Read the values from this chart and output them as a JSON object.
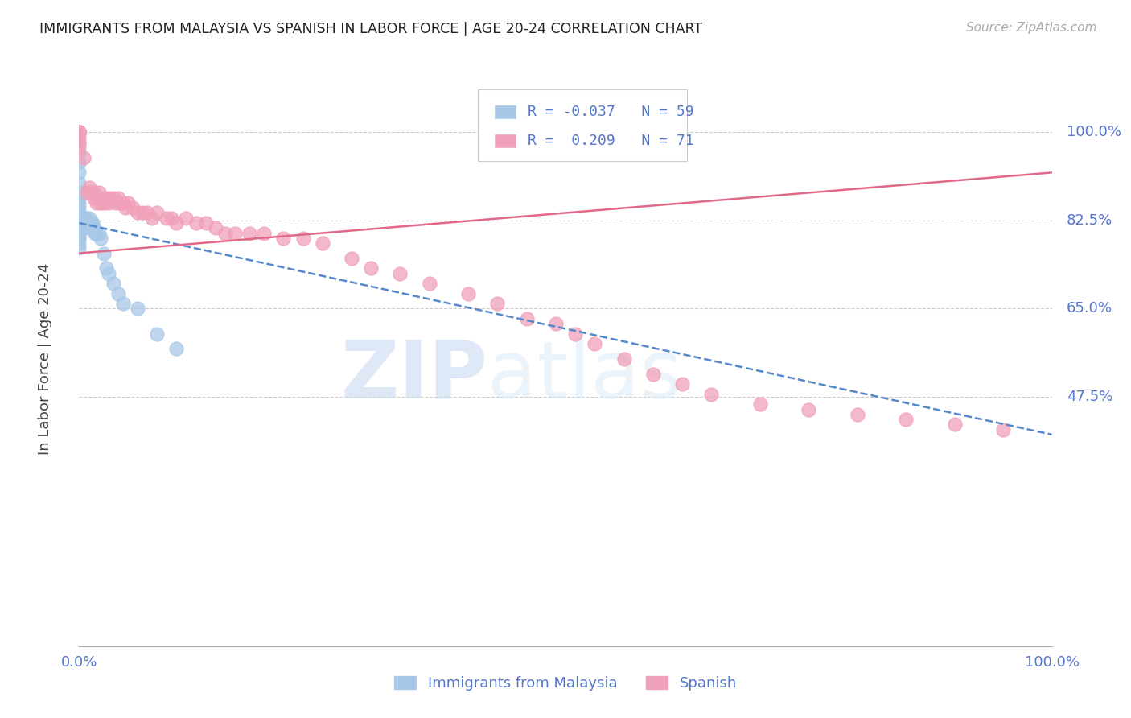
{
  "title": "IMMIGRANTS FROM MALAYSIA VS SPANISH IN LABOR FORCE | AGE 20-24 CORRELATION CHART",
  "source": "Source: ZipAtlas.com",
  "ylabel": "In Labor Force | Age 20-24",
  "ytick_labels": [
    "100.0%",
    "82.5%",
    "65.0%",
    "47.5%"
  ],
  "ytick_values": [
    1.0,
    0.825,
    0.65,
    0.475
  ],
  "xlim": [
    0.0,
    1.0
  ],
  "ylim": [
    -0.02,
    1.12
  ],
  "legend_r_malaysia": "-0.037",
  "legend_n_malaysia": "59",
  "legend_r_spanish": "0.209",
  "legend_n_spanish": "71",
  "watermark_zip": "ZIP",
  "watermark_atlas": "atlas",
  "color_malaysia": "#a8c8e8",
  "color_spanish": "#f0a0b8",
  "color_malaysia_line": "#5588cc",
  "color_spanish_line": "#e06888",
  "color_axis_labels": "#5577cc",
  "malaysia_x": [
    0.0,
    0.0,
    0.0,
    0.0,
    0.0,
    0.0,
    0.0,
    0.0,
    0.0,
    0.0,
    0.0,
    0.0,
    0.0,
    0.0,
    0.0,
    0.0,
    0.0,
    0.0,
    0.0,
    0.0,
    0.0,
    0.0,
    0.0,
    0.0,
    0.0,
    0.0,
    0.0,
    0.0,
    0.0,
    0.0,
    0.004,
    0.004,
    0.004,
    0.005,
    0.006,
    0.006,
    0.007,
    0.007,
    0.008,
    0.009,
    0.01,
    0.011,
    0.012,
    0.013,
    0.014,
    0.015,
    0.016,
    0.018,
    0.02,
    0.022,
    0.025,
    0.028,
    0.03,
    0.035,
    0.04,
    0.045,
    0.06,
    0.08,
    0.1
  ],
  "malaysia_y": [
    1.0,
    1.0,
    0.98,
    0.96,
    0.94,
    0.92,
    0.9,
    0.88,
    0.87,
    0.86,
    0.85,
    0.84,
    0.84,
    0.83,
    0.83,
    0.83,
    0.82,
    0.82,
    0.82,
    0.82,
    0.81,
    0.81,
    0.81,
    0.8,
    0.8,
    0.8,
    0.79,
    0.79,
    0.78,
    0.77,
    0.83,
    0.82,
    0.81,
    0.83,
    0.82,
    0.81,
    0.83,
    0.82,
    0.82,
    0.82,
    0.83,
    0.82,
    0.82,
    0.82,
    0.82,
    0.81,
    0.8,
    0.8,
    0.8,
    0.79,
    0.76,
    0.73,
    0.72,
    0.7,
    0.68,
    0.66,
    0.65,
    0.6,
    0.57
  ],
  "spanish_x": [
    0.0,
    0.0,
    0.0,
    0.0,
    0.0,
    0.0,
    0.0,
    0.0,
    0.0,
    0.0,
    0.0,
    0.005,
    0.008,
    0.01,
    0.012,
    0.015,
    0.015,
    0.018,
    0.02,
    0.022,
    0.025,
    0.025,
    0.03,
    0.03,
    0.035,
    0.038,
    0.04,
    0.042,
    0.045,
    0.048,
    0.05,
    0.055,
    0.06,
    0.065,
    0.07,
    0.075,
    0.08,
    0.09,
    0.095,
    0.1,
    0.11,
    0.12,
    0.13,
    0.14,
    0.15,
    0.16,
    0.175,
    0.19,
    0.21,
    0.23,
    0.25,
    0.28,
    0.3,
    0.33,
    0.36,
    0.4,
    0.43,
    0.46,
    0.49,
    0.51,
    0.53,
    0.56,
    0.59,
    0.62,
    0.65,
    0.7,
    0.75,
    0.8,
    0.85,
    0.9,
    0.95
  ],
  "spanish_y": [
    1.0,
    1.0,
    1.0,
    1.0,
    1.0,
    1.0,
    1.0,
    1.0,
    0.99,
    0.98,
    0.97,
    0.95,
    0.88,
    0.89,
    0.88,
    0.88,
    0.87,
    0.86,
    0.88,
    0.86,
    0.87,
    0.86,
    0.87,
    0.86,
    0.87,
    0.86,
    0.87,
    0.86,
    0.86,
    0.85,
    0.86,
    0.85,
    0.84,
    0.84,
    0.84,
    0.83,
    0.84,
    0.83,
    0.83,
    0.82,
    0.83,
    0.82,
    0.82,
    0.81,
    0.8,
    0.8,
    0.8,
    0.8,
    0.79,
    0.79,
    0.78,
    0.75,
    0.73,
    0.72,
    0.7,
    0.68,
    0.66,
    0.63,
    0.62,
    0.6,
    0.58,
    0.55,
    0.52,
    0.5,
    0.48,
    0.46,
    0.45,
    0.44,
    0.43,
    0.42,
    0.41
  ],
  "trend_malaysia_x0": 0.0,
  "trend_malaysia_x1": 1.0,
  "trend_malaysia_y0": 0.82,
  "trend_malaysia_y1": 0.4,
  "trend_spanish_x0": 0.0,
  "trend_spanish_x1": 1.0,
  "trend_spanish_y0": 0.76,
  "trend_spanish_y1": 0.92
}
